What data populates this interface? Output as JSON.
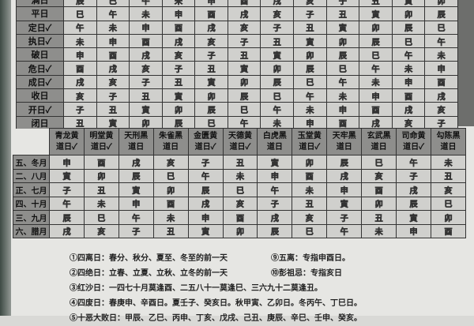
{
  "day_table": {
    "rows": [
      {
        "label": "满日",
        "values": [
          "辰",
          "巳",
          "午",
          "未",
          "申",
          "酉",
          "戌",
          "亥",
          "子",
          "丑",
          "寅",
          "卯"
        ]
      },
      {
        "label": "平日",
        "values": [
          "巳",
          "午",
          "未",
          "申",
          "酉",
          "戌",
          "亥",
          "子",
          "丑",
          "寅",
          "卯",
          "辰"
        ]
      },
      {
        "label": "定日✓",
        "values": [
          "午",
          "未",
          "申",
          "酉",
          "戌",
          "亥",
          "子",
          "丑",
          "寅",
          "卯",
          "辰",
          "巳"
        ]
      },
      {
        "label": "执日✓",
        "values": [
          "未",
          "申",
          "酉",
          "戌",
          "亥",
          "子",
          "丑",
          "寅",
          "卯",
          "辰",
          "巳",
          "午"
        ]
      },
      {
        "label": "破日",
        "values": [
          "申",
          "酉",
          "戌",
          "亥",
          "子",
          "丑",
          "寅",
          "卯",
          "辰",
          "巳",
          "午",
          "未"
        ]
      },
      {
        "label": "危日✓",
        "values": [
          "酉",
          "戌",
          "亥",
          "子",
          "丑",
          "寅",
          "卯",
          "辰",
          "巳",
          "午",
          "未",
          "申"
        ]
      },
      {
        "label": "成日✓",
        "values": [
          "戌",
          "亥",
          "子",
          "丑",
          "寅",
          "卯",
          "辰",
          "巳",
          "午",
          "未",
          "申",
          "酉"
        ]
      },
      {
        "label": "收日",
        "values": [
          "亥",
          "子",
          "丑",
          "寅",
          "卯",
          "辰",
          "巳",
          "午",
          "未",
          "申",
          "酉",
          "戌"
        ]
      },
      {
        "label": "开日✓",
        "values": [
          "子",
          "丑",
          "寅",
          "卯",
          "辰",
          "巳",
          "午",
          "未",
          "申",
          "酉",
          "戌",
          "亥"
        ]
      },
      {
        "label": "闭日",
        "values": [
          "丑",
          "寅",
          "卯",
          "辰",
          "巳",
          "午",
          "未",
          "申",
          "酉",
          "戌",
          "亥",
          "子"
        ]
      }
    ]
  },
  "month_table": {
    "headers": [
      [
        "青龙黄",
        "道日✓"
      ],
      [
        "明堂黄",
        "道日✓"
      ],
      [
        "天刑黑",
        "道日"
      ],
      [
        "朱雀黑",
        "道日"
      ],
      [
        "金匮黄",
        "道日✓"
      ],
      [
        "天德黄",
        "道日✓"
      ],
      [
        "白虎黑",
        "道日"
      ],
      [
        "玉堂黄",
        "道日✓"
      ],
      [
        "天牢黑",
        "道日"
      ],
      [
        "玄武黑",
        "道日"
      ],
      [
        "司命黄",
        "道日✓"
      ],
      [
        "勾陈黑",
        "道日"
      ]
    ],
    "rows": [
      {
        "label": "五、冬月",
        "values": [
          "申",
          "酉",
          "戌",
          "亥",
          "子",
          "丑",
          "寅",
          "卯",
          "辰",
          "巳",
          "午",
          "未"
        ]
      },
      {
        "label": "二、八月",
        "values": [
          "寅",
          "卯",
          "辰",
          "巳",
          "午",
          "未",
          "申",
          "酉",
          "戌",
          "亥",
          "子",
          "丑"
        ]
      },
      {
        "label": "正、七月",
        "values": [
          "子",
          "丑",
          "寅",
          "卯",
          "辰",
          "巳",
          "午",
          "未",
          "申",
          "酉",
          "戌",
          "亥"
        ]
      },
      {
        "label": "四、十月",
        "values": [
          "午",
          "未",
          "申",
          "酉",
          "戌",
          "亥",
          "子",
          "丑",
          "寅",
          "卯",
          "辰",
          "巳"
        ]
      },
      {
        "label": "三、九月",
        "values": [
          "辰",
          "巳",
          "午",
          "未",
          "申",
          "酉",
          "戌",
          "亥",
          "子",
          "丑",
          "寅",
          "卯"
        ]
      },
      {
        "label": "六、腊月",
        "values": [
          "戌",
          "亥",
          "子",
          "丑",
          "寅",
          "卯",
          "辰",
          "巳",
          "午",
          "未",
          "申",
          "酉"
        ]
      }
    ]
  },
  "notes": {
    "n1": "①四离日：春分、秋分、夏至、冬至的前一天",
    "n9": "⑨五离：专指申酉日。",
    "n2": "②四绝日：立春、立夏、立秋、立冬的前一天",
    "n10": "⑩彭祖忌：专指亥日",
    "n3": "③红沙日：一四七十月莫逢酉、二五八十一莫逢巳、三六九十二莫逢丑。",
    "n4": "④四废日：春庚申、辛酉日。夏壬子、癸亥日。秋甲寅、乙卯日。冬丙午、丁巳日。",
    "n5": "⑤十恶大败日：甲辰、乙巳、丙申、丁亥、戊戌、己丑、庚辰、辛巳、壬申、癸亥。"
  }
}
